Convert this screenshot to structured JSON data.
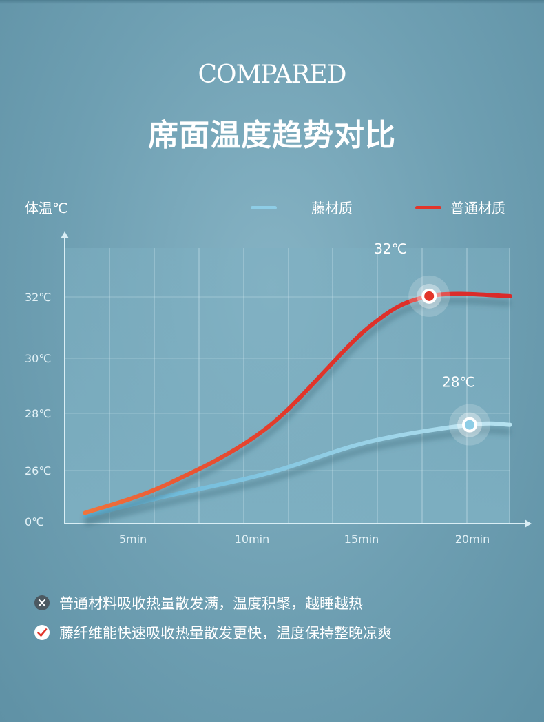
{
  "header": {
    "en_title": "COMPARED",
    "cn_title": "席面温度趋势对比"
  },
  "chart_data": {
    "type": "line",
    "ylabel": "体温℃",
    "y_ticks": [
      "0℃",
      "26℃",
      "28℃",
      "30℃",
      "32℃"
    ],
    "x_ticks": [
      "5min",
      "10min",
      "15min",
      "20min"
    ],
    "grid": true,
    "legend_placement": "top-right",
    "series": [
      {
        "name": "藤材质",
        "color": "#8ecde6",
        "x": [
          1,
          5,
          10,
          15,
          20,
          22
        ],
        "values": [
          24.8,
          25.1,
          25.9,
          27.0,
          27.6,
          27.6
        ],
        "annotation": "28℃"
      },
      {
        "name": "普通材质",
        "color": "#e2352a",
        "x": [
          1,
          5,
          10,
          15,
          18,
          22
        ],
        "values": [
          25.0,
          25.5,
          27.5,
          31.0,
          32.1,
          32.1
        ],
        "annotation": "32℃"
      }
    ]
  },
  "notes": [
    {
      "icon": "x-circle-icon",
      "text": "普通材料吸收热量散发满，温度积聚，越睡越热"
    },
    {
      "icon": "check-circle-icon",
      "text": "藤纤维能快速吸收热量散发更快，温度保持整晚凉爽"
    }
  ]
}
